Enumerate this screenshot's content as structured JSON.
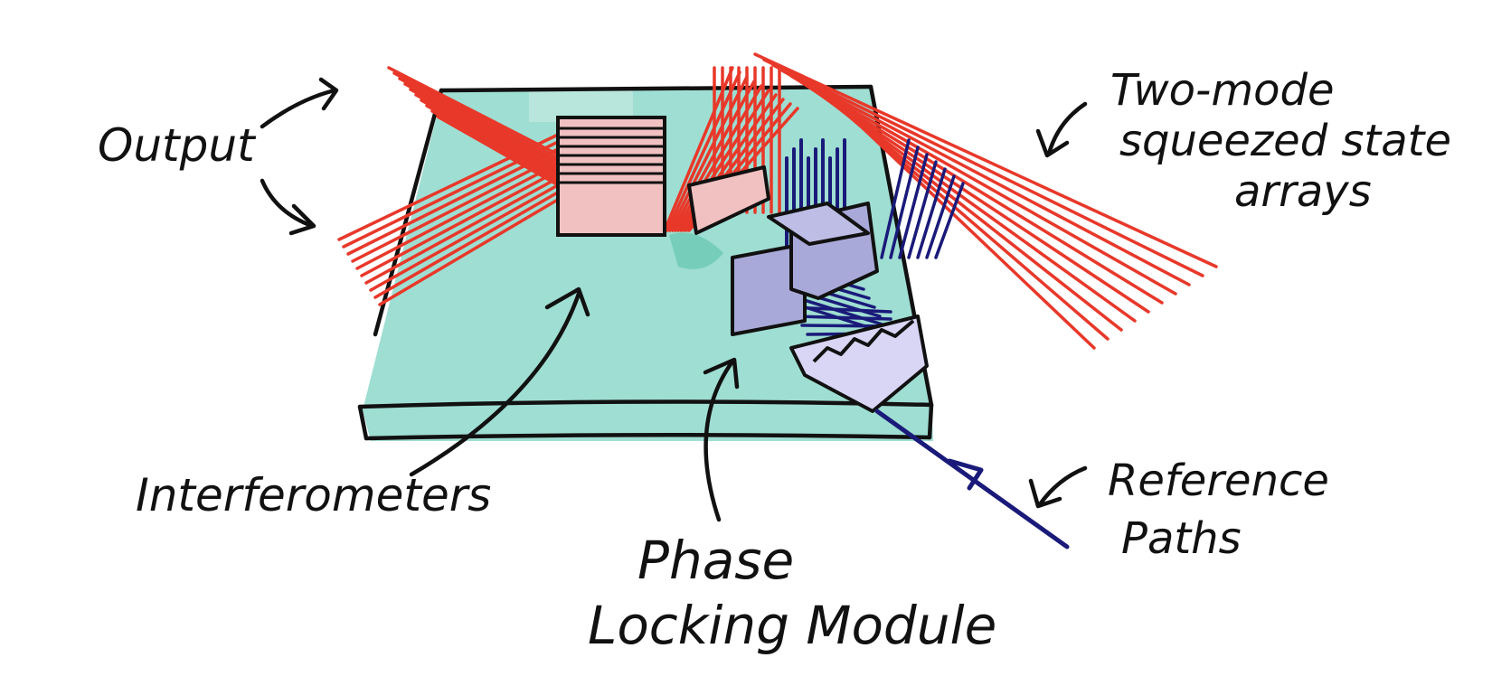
{
  "labels": {
    "output": "Output",
    "two_mode_line1": "Two-mode",
    "two_mode_line2": "squeezed state",
    "two_mode_line3": "arrays",
    "interferometers": "Interferometers",
    "phase_line1": "Phase",
    "phase_line2": "Locking Module",
    "reference_line1": "Reference",
    "reference_line2": "Paths"
  },
  "colors": {
    "board": "#9fded2",
    "board_dark": "#6cc9b4",
    "beam_red": "#e8382a",
    "beam_navy": "#1a1a7a",
    "interferometer_fill": "#f1c1c1",
    "module_fill": "#a9a9d9",
    "module_light": "#d9d6f5",
    "ink": "#111111"
  },
  "icons": [
    "arrow-icon"
  ]
}
